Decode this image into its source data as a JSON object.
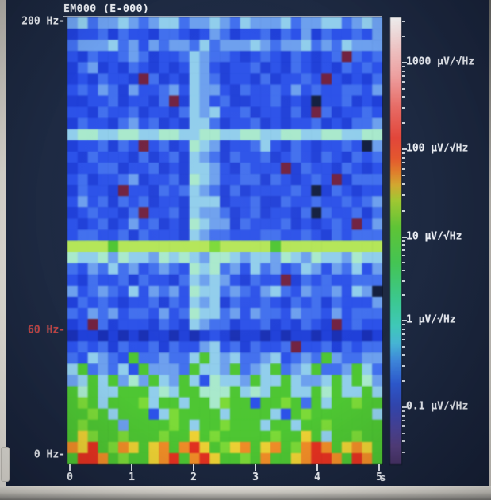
{
  "chart_data": {
    "type": "heatmap",
    "title": "EM000 (E-000)",
    "x_axis": {
      "unit": "s",
      "range": [
        0,
        5
      ],
      "ticks": [
        "0",
        "1",
        "2",
        "3",
        "4",
        "5"
      ]
    },
    "y_axis": {
      "unit": "Hz",
      "range": [
        0,
        200
      ],
      "labels": [
        {
          "text": "200 Hz-",
          "value": 200,
          "color": "#e9ecf2"
        },
        {
          "text": "60 Hz-",
          "value": 60,
          "color": "#c04343"
        },
        {
          "text": "0 Hz-",
          "value": 0,
          "color": "#e9ecf2"
        }
      ]
    },
    "colorbar": {
      "scale": "log",
      "unit": "μV/√Hz",
      "tick_labels": [
        "1000",
        "100",
        "10",
        "1",
        "0.1"
      ],
      "major_tick_y": [
        56,
        165,
        276,
        381,
        490
      ],
      "minor_fractions": [
        0.0458,
        0.0969,
        0.1549,
        0.2218,
        0.301,
        0.3979,
        0.5229,
        0.699
      ],
      "gradient": [
        [
          0.0,
          "#f8f8f8"
        ],
        [
          0.02,
          "#f6eaea"
        ],
        [
          0.07,
          "#f2c6c6"
        ],
        [
          0.13,
          "#eda0a0"
        ],
        [
          0.2,
          "#e76c66"
        ],
        [
          0.27,
          "#e2463a"
        ],
        [
          0.315,
          "#e4572e"
        ],
        [
          0.345,
          "#e07c2c"
        ],
        [
          0.375,
          "#d2a830"
        ],
        [
          0.41,
          "#a0c832"
        ],
        [
          0.47,
          "#5ec436"
        ],
        [
          0.55,
          "#44c454"
        ],
        [
          0.63,
          "#3cc88e"
        ],
        [
          0.69,
          "#3fc8b8"
        ],
        [
          0.73,
          "#46b4d4"
        ],
        [
          0.77,
          "#3e86dc"
        ],
        [
          0.82,
          "#2e5ad0"
        ],
        [
          0.87,
          "#3448b4"
        ],
        [
          0.92,
          "#4a4499"
        ],
        [
          0.96,
          "#55407f"
        ],
        [
          1.0,
          "#473366"
        ]
      ]
    },
    "palette": {
      "n": "#141f3d",
      "m": "#6e2340",
      "1": "#1a2fae",
      "2": "#2240d2",
      "3": "#2e52e2",
      "4": "#4470e8",
      "5": "#6fa0ea",
      "6": "#93cdea",
      "7": "#abe8cd",
      "8": "#b5e55e",
      "9": "#52c438",
      "a": "#7fd83e",
      "b": "#ecd23c",
      "c": "#ee8f2e",
      "d": "#de3424"
    },
    "grid": [
      "5645565456645565465556455664565",
      "2334243324432354233424352433435",
      "4555645354554645556545564546555",
      "324334542334654432343243234m434",
      "2452324323236532334232432324343",
      "2324332m42326542332423343m32324",
      "3435425334536553243343534334435",
      "2233423324m2653422334232n334232",
      "332433423324656334233242m423343",
      "2433245342326642334232334232445",
      "6776677667766776677667766776677",
      "2334243m342376523346324323343n5",
      "3243332423426542433423432432434",
      "233442334232665324333m243324323",
      "34233452334276533442432343m2444",
      "24332m332434654242333343n243233",
      "3534243423326662334224334334345",
      "2343324m3342655423423324n433424",
      "3234235342327655243334232343m35",
      "3443342433326544333443343243444",
      "88889888888888a8888898888888888",
      "7667576657676577656657657665766",
      "4354645345437674536453465354635",
      "324334243324656532433m243433444",
      "534543635453766454356435445365n",
      "2434323342436562433432434243335",
      "4354534435347664535443544353444",
      "23m42333243265442334232432m3433",
      "1221212122121232122121221212212",
      "3434243342433563424334m33424344",
      "4365439445446965644563454954455",
      "6945463955549665945694569445964",
      "5696957596596376659669655696975",
      "9796699967699777967699669796696",
      "9a96999a6996997a99399a949699a99",
      "99a9699936a999969999639a9999996",
      "9a99959999a9699a999699699a99999",
      "9ba99a999a99b9a99999a99b9699a99",
      "cbd9acb9bc9cdb9abc9bc9acdc9bcb9",
      "9ddc9a99bcd9cdb99a9c99bcddc9dc9"
    ]
  }
}
